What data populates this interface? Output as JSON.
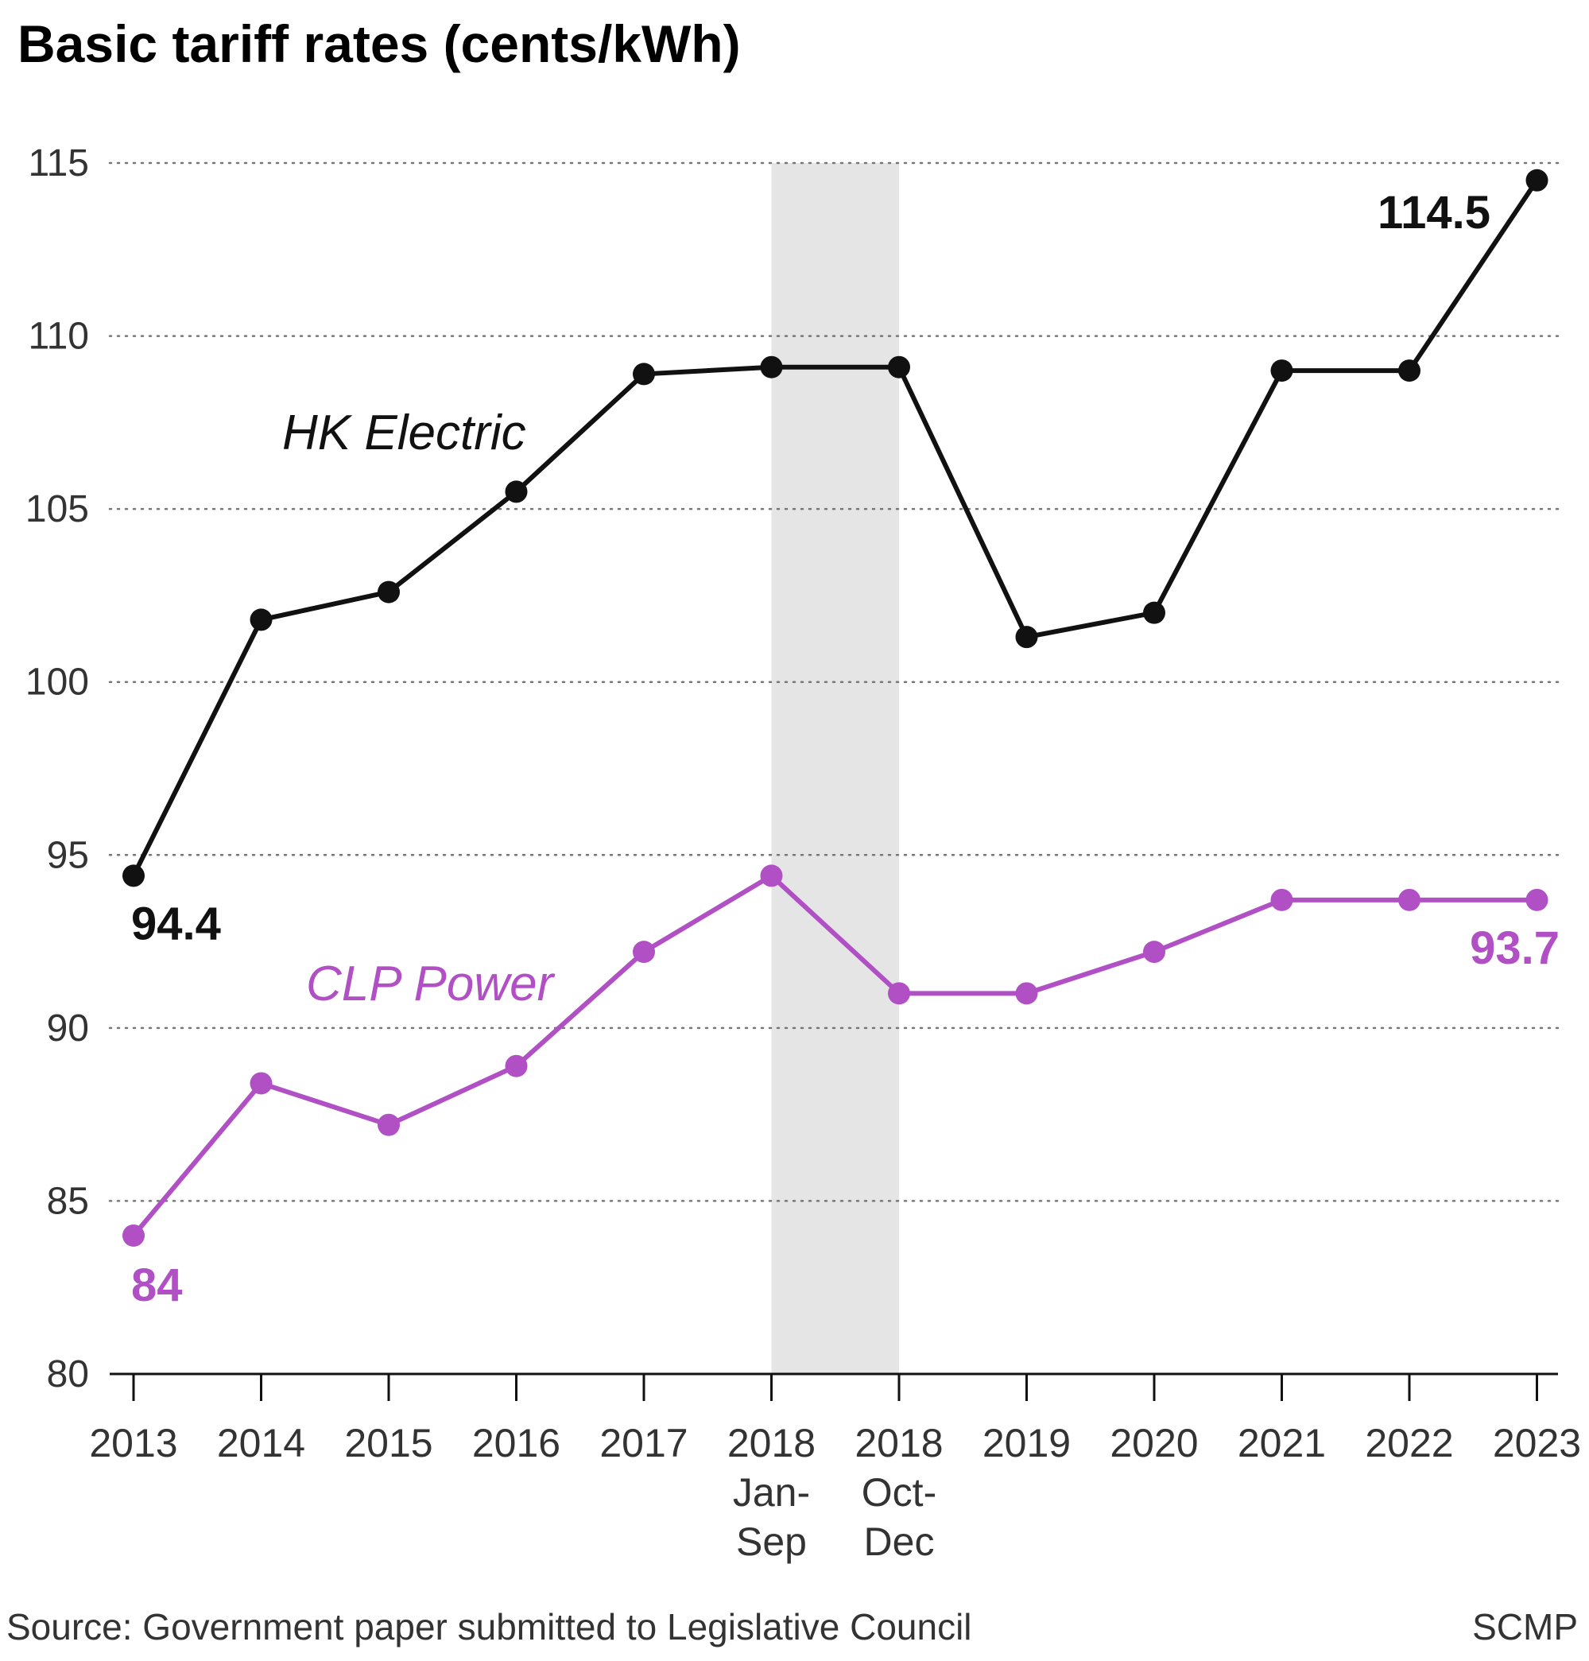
{
  "chart_data": {
    "type": "line",
    "title": "Basic tariff rates (cents/kWh)",
    "ylim": [
      80,
      115
    ],
    "yticks": [
      80,
      85,
      90,
      95,
      100,
      105,
      110,
      115
    ],
    "grid": true,
    "categories": [
      [
        "2013"
      ],
      [
        "2014"
      ],
      [
        "2015"
      ],
      [
        "2016"
      ],
      [
        "2017"
      ],
      [
        "2018",
        "Jan-",
        "Sep"
      ],
      [
        "2018",
        "Oct-",
        "Dec"
      ],
      [
        "2019"
      ],
      [
        "2020"
      ],
      [
        "2021"
      ],
      [
        "2022"
      ],
      [
        "2023"
      ]
    ],
    "highlight": {
      "from_index": 5,
      "to_index": 6,
      "color": "#e5e5e5"
    },
    "series": [
      {
        "name": "HK Electric",
        "color": "#111111",
        "values": [
          94.4,
          101.8,
          102.6,
          105.5,
          108.9,
          109.1,
          109.1,
          101.3,
          102.0,
          109.0,
          109.0,
          114.5
        ],
        "first_label": "94.4",
        "last_label": "114.5"
      },
      {
        "name": "CLP Power",
        "color": "#b150c5",
        "values": [
          84.0,
          88.4,
          87.2,
          88.9,
          92.2,
          94.4,
          91.0,
          91.0,
          92.2,
          93.7,
          93.7,
          93.7
        ],
        "first_label": "84",
        "last_label": "93.7"
      }
    ]
  },
  "footer": {
    "source": "Source: Government paper submitted to Legislative Council",
    "credit": "SCMP"
  }
}
